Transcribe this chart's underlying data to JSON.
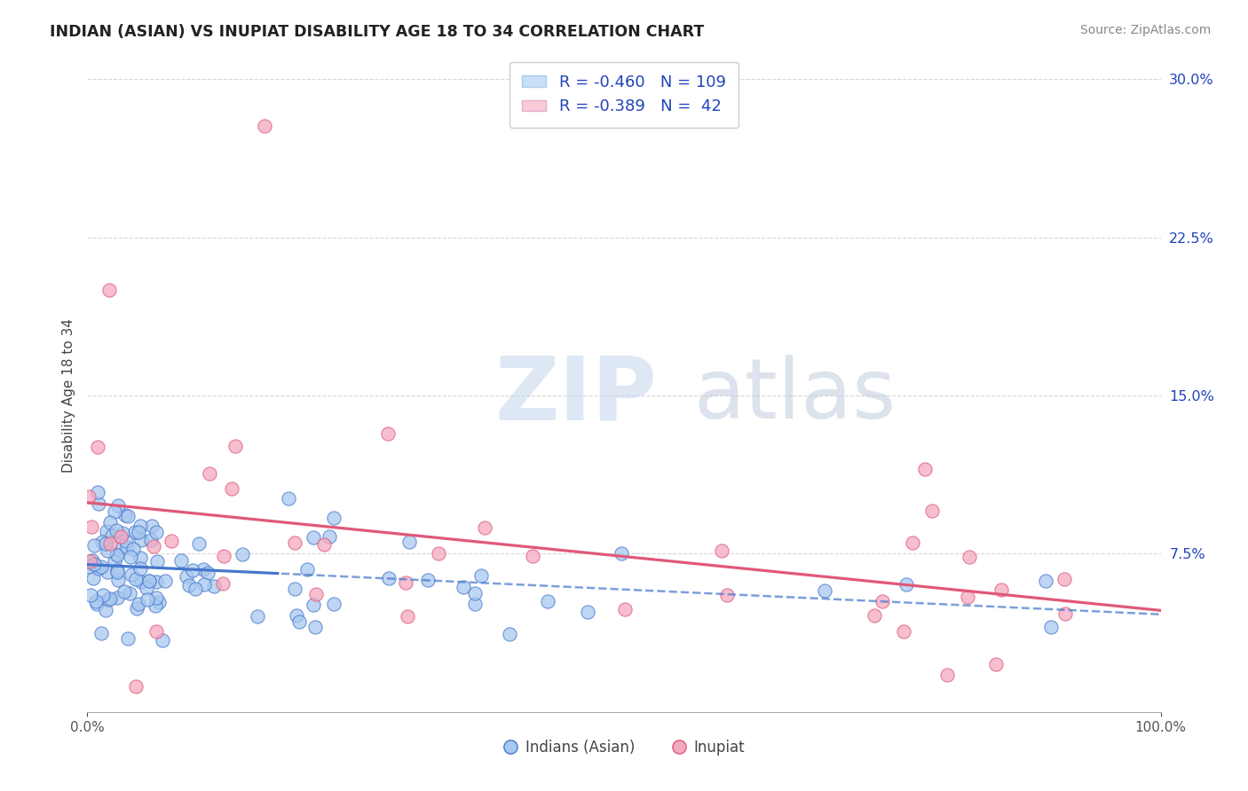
{
  "title": "INDIAN (ASIAN) VS INUPIAT DISABILITY AGE 18 TO 34 CORRELATION CHART",
  "source": "Source: ZipAtlas.com",
  "ylabel": "Disability Age 18 to 34",
  "legend_labels": [
    "Indians (Asian)",
    "Inupiat"
  ],
  "r_indian": -0.46,
  "n_indian": 109,
  "r_inupiat": -0.389,
  "n_inupiat": 42,
  "scatter_color_indian": "#a8c8f0",
  "scatter_color_inupiat": "#f4a8c0",
  "line_color_indian": "#4477cc",
  "line_color_inupiat": "#e05878",
  "legend_box_color_indian": "#c8dff8",
  "legend_box_color_inupiat": "#f8ccd8",
  "text_color_blue": "#2244bb",
  "title_color": "#222222",
  "watermark_zip": "ZIP",
  "watermark_atlas": "atlas",
  "background_color": "#ffffff",
  "grid_color": "#bbbbbb",
  "xlim": [
    0.0,
    1.0
  ],
  "ylim": [
    0.0,
    0.3
  ],
  "xtick_labels": [
    "0.0%",
    "100.0%"
  ],
  "ytick_labels": [
    "7.5%",
    "15.0%",
    "22.5%",
    "30.0%"
  ],
  "ytick_values": [
    0.075,
    0.15,
    0.225,
    0.3
  ]
}
